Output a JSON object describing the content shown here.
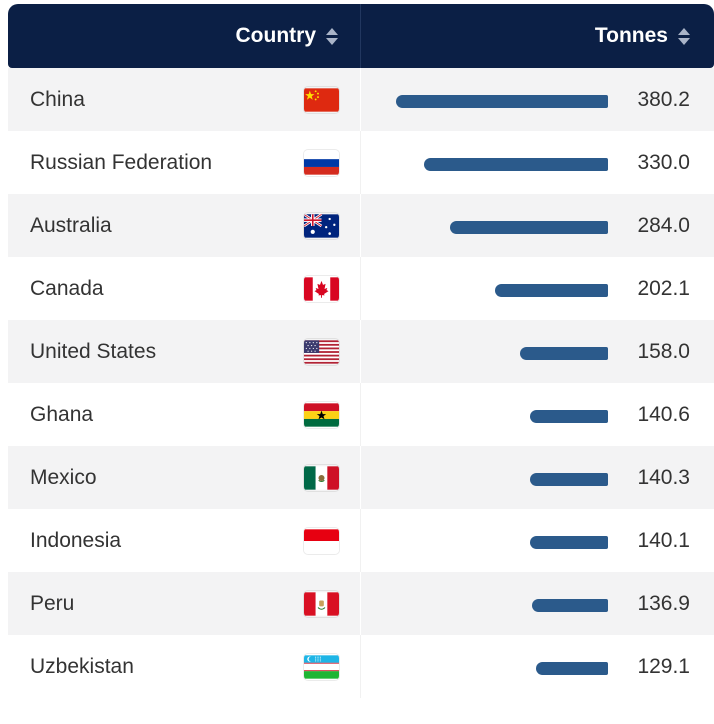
{
  "header": {
    "country_label": "Country",
    "tonnes_label": "Tonnes",
    "bg_color": "#0b1f45"
  },
  "bar_color": "#2b5a8b",
  "chart_data": {
    "type": "bar",
    "categories": [
      "China",
      "Russian Federation",
      "Australia",
      "Canada",
      "United States",
      "Ghana",
      "Mexico",
      "Indonesia",
      "Peru",
      "Uzbekistan"
    ],
    "values": [
      380.2,
      330.0,
      284.0,
      202.1,
      158.0,
      140.6,
      140.3,
      140.1,
      136.9,
      129.1
    ],
    "value_labels": [
      "380.2",
      "330.0",
      "284.0",
      "202.1",
      "158.0",
      "140.6",
      "140.3",
      "140.1",
      "136.9",
      "129.1"
    ],
    "flags": [
      "china-flag-icon",
      "russia-flag-icon",
      "australia-flag-icon",
      "canada-flag-icon",
      "usa-flag-icon",
      "ghana-flag-icon",
      "mexico-flag-icon",
      "indonesia-flag-icon",
      "peru-flag-icon",
      "uzbekistan-flag-icon"
    ],
    "xlabel": "Country",
    "ylabel": "Tonnes",
    "ylim": [
      0,
      380.2
    ],
    "orientation": "horizontal"
  }
}
